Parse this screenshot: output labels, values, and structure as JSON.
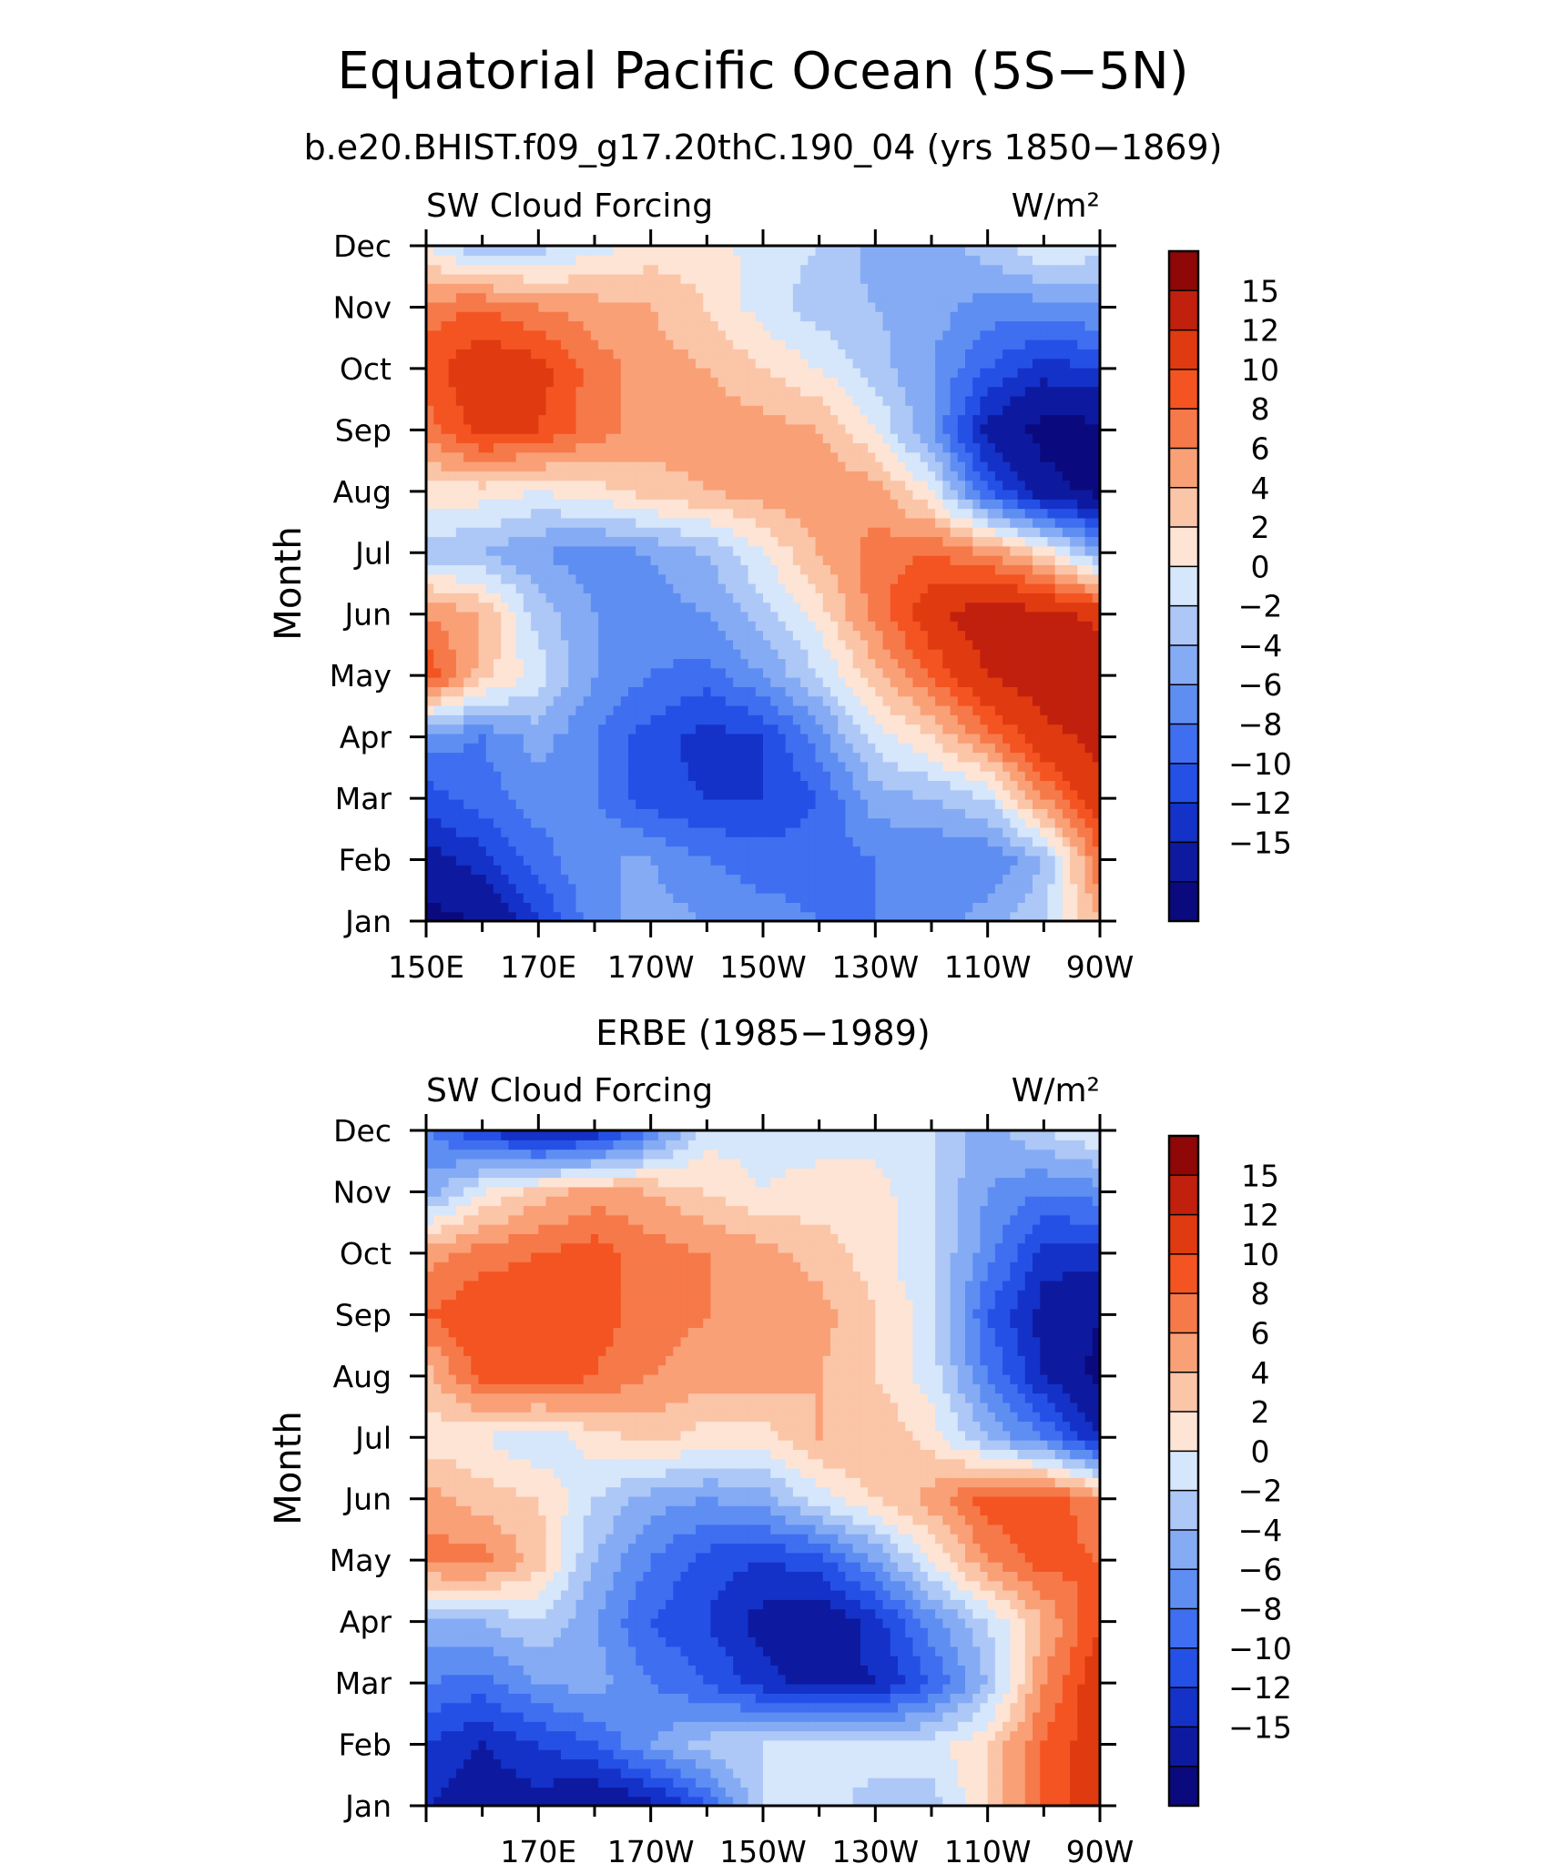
{
  "figure": {
    "title": "Equatorial Pacific Ocean (5S−5N)",
    "colors": [
      "#0a0a7e",
      "#0d1aa0",
      "#1432c8",
      "#2550e6",
      "#3f6ef0",
      "#5f8ef2",
      "#85abf4",
      "#adc8f6",
      "#d6e6fb",
      "#fde4d5",
      "#fbc5a8",
      "#f9a077",
      "#f6794a",
      "#f45421",
      "#e03a10",
      "#c0200d",
      "#8f0707"
    ],
    "colorbar_labels": [
      "15",
      "12",
      "10",
      "8",
      "6",
      "4",
      "2",
      "0",
      "−2",
      "−4",
      "−6",
      "−8",
      "−10",
      "−12",
      "−15"
    ]
  },
  "chart_data": [
    {
      "type": "heatmap",
      "subtitle": "b.e20.BHIST.f09_g17.20thC.190_04 (yrs 1850−1869)",
      "left_label": "SW Cloud Forcing",
      "units": "W/m²",
      "ylabel": "Month",
      "x_tick_labels": [
        "150E",
        "170E",
        "170W",
        "150W",
        "130W",
        "110W",
        "90W"
      ],
      "y_tick_labels": [
        "Jan",
        "Feb",
        "Mar",
        "Apr",
        "May",
        "Jun",
        "Jul",
        "Aug",
        "Sep",
        "Oct",
        "Nov",
        "Dec"
      ],
      "x_range_degE": [
        150,
        270
      ],
      "levels": [
        -15,
        -12,
        -10,
        -8,
        -6,
        -4,
        -2,
        0,
        2,
        4,
        6,
        8,
        10,
        12,
        15
      ],
      "x": [
        150,
        160,
        170,
        180,
        190,
        200,
        210,
        220,
        230,
        240,
        250,
        260,
        270
      ],
      "months": [
        "Jan",
        "Feb",
        "Mar",
        "Apr",
        "May",
        "Jun",
        "Jul",
        "Aug",
        "Sep",
        "Oct",
        "Nov",
        "Dec"
      ],
      "values": [
        [
          -16,
          -15,
          -10,
          -5,
          -3,
          -4,
          -5,
          -6,
          -6,
          -5,
          -3,
          0,
          6
        ],
        [
          -13,
          -11,
          -7,
          -4,
          -4,
          -6,
          -7,
          -7,
          -6,
          -6,
          -6,
          -2,
          10
        ],
        [
          -9,
          -7,
          -5,
          -6,
          -9,
          -10,
          -10,
          -8,
          -3,
          -2,
          0,
          8,
          14
        ],
        [
          -5,
          -6,
          -3,
          -6,
          -9,
          -11,
          -10,
          -5,
          1,
          4,
          9,
          14,
          16
        ],
        [
          12,
          5,
          1,
          -4,
          -6,
          -7,
          -4,
          0,
          5,
          10,
          15,
          17,
          18
        ],
        [
          8,
          6,
          -1,
          -4,
          -5,
          -4,
          -1,
          3,
          9,
          14,
          17,
          16,
          14
        ],
        [
          -1,
          -2,
          -4,
          -5,
          -4,
          -2,
          2,
          6,
          9,
          10,
          8,
          4,
          -3
        ],
        [
          3,
          3,
          2,
          3,
          5,
          6,
          7,
          8,
          7,
          2,
          -8,
          -14,
          -16
        ],
        [
          9,
          13,
          12,
          9,
          7,
          7,
          7,
          6,
          2,
          -4,
          -13,
          -16,
          -16
        ],
        [
          11,
          14,
          13,
          9,
          7,
          6,
          4,
          2,
          -1,
          -4,
          -8,
          -11,
          -10
        ],
        [
          9,
          10,
          8,
          7,
          6,
          4,
          1,
          -1,
          -2,
          -3,
          -5,
          -5,
          -4
        ],
        [
          2,
          -2,
          -1,
          1,
          3,
          3,
          1,
          0,
          -3,
          -3,
          -1,
          2,
          1
        ]
      ]
    },
    {
      "type": "heatmap",
      "subtitle": "ERBE (1985−1989)",
      "left_label": "SW Cloud Forcing",
      "units": "W/m²",
      "ylabel": "Month",
      "x_tick_labels": [
        "170E",
        "170W",
        "150W",
        "130W",
        "110W",
        "90W"
      ],
      "y_tick_labels": [
        "Jan",
        "Feb",
        "Mar",
        "Apr",
        "May",
        "Jun",
        "Jul",
        "Aug",
        "Sep",
        "Oct",
        "Nov",
        "Dec"
      ],
      "x_range_degE": [
        150,
        270
      ],
      "levels": [
        -15,
        -12,
        -10,
        -8,
        -6,
        -4,
        -2,
        0,
        2,
        4,
        6,
        8,
        10,
        12,
        15
      ],
      "x": [
        150,
        160,
        170,
        180,
        190,
        200,
        210,
        220,
        230,
        240,
        250,
        260,
        270
      ],
      "months": [
        "Jan",
        "Feb",
        "Mar",
        "Apr",
        "May",
        "Jun",
        "Jul",
        "Aug",
        "Sep",
        "Oct",
        "Nov",
        "Dec"
      ],
      "values": [
        [
          -12,
          -14,
          -13,
          -15,
          -13,
          -8,
          0,
          1,
          -1,
          -1,
          4,
          10,
          14
        ],
        [
          -10,
          -12,
          -10,
          -8,
          -4,
          -1,
          0,
          1,
          1,
          1,
          4,
          10,
          14
        ],
        [
          -6,
          -7,
          -4,
          -3,
          -6,
          -8,
          -11,
          -13,
          -12,
          -8,
          -2,
          8,
          14
        ],
        [
          -3,
          -2,
          0,
          -4,
          -8,
          -10,
          -13,
          -14,
          -11,
          -5,
          0,
          6,
          12
        ],
        [
          9,
          9,
          5,
          -2,
          -6,
          -9,
          -10,
          -9,
          -4,
          2,
          8,
          11,
          10
        ],
        [
          7,
          5,
          4,
          0,
          -3,
          -4,
          -3,
          1,
          4,
          7,
          11,
          12,
          8
        ],
        [
          3,
          2,
          0,
          3,
          5,
          3,
          3,
          6,
          6,
          3,
          -2,
          -6,
          -12
        ],
        [
          5,
          11,
          12,
          10,
          8,
          7,
          7,
          6,
          4,
          1,
          -6,
          -12,
          -16
        ],
        [
          10,
          12,
          12,
          11,
          9,
          8,
          7,
          7,
          4,
          1,
          -8,
          -13,
          -15
        ],
        [
          7,
          9,
          10,
          11,
          9,
          8,
          7,
          5,
          3,
          0,
          -5,
          -11,
          -11
        ],
        [
          -3,
          2,
          5,
          7,
          6,
          4,
          2,
          3,
          3,
          0,
          -4,
          -6,
          -5
        ],
        [
          -6,
          -10,
          -13,
          -12,
          -6,
          1,
          1,
          1,
          1,
          0,
          -3,
          0,
          2
        ]
      ]
    }
  ]
}
